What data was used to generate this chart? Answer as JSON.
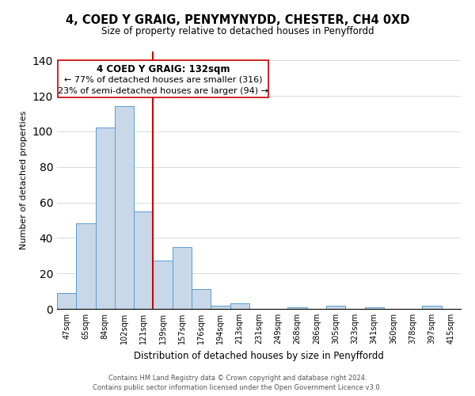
{
  "title": "4, COED Y GRAIG, PENYMYNYDD, CHESTER, CH4 0XD",
  "subtitle": "Size of property relative to detached houses in Penyffordd",
  "xlabel": "Distribution of detached houses by size in Penyffordd",
  "ylabel": "Number of detached properties",
  "footer_line1": "Contains HM Land Registry data © Crown copyright and database right 2024.",
  "footer_line2": "Contains public sector information licensed under the Open Government Licence v3.0.",
  "bar_labels": [
    "47sqm",
    "65sqm",
    "84sqm",
    "102sqm",
    "121sqm",
    "139sqm",
    "157sqm",
    "176sqm",
    "194sqm",
    "213sqm",
    "231sqm",
    "249sqm",
    "268sqm",
    "286sqm",
    "305sqm",
    "323sqm",
    "341sqm",
    "360sqm",
    "378sqm",
    "397sqm",
    "415sqm"
  ],
  "bar_values": [
    9,
    48,
    102,
    114,
    55,
    27,
    35,
    11,
    2,
    3,
    0,
    0,
    1,
    0,
    2,
    0,
    1,
    0,
    0,
    2,
    0
  ],
  "bar_color": "#c8d8e8",
  "bar_edge_color": "#5b9bd5",
  "vline_color": "#cc0000",
  "ylim": [
    0,
    145
  ],
  "yticks": [
    0,
    20,
    40,
    60,
    80,
    100,
    120,
    140
  ],
  "annotation_title": "4 COED Y GRAIG: 132sqm",
  "annotation_line1": "← 77% of detached houses are smaller (316)",
  "annotation_line2": "23% of semi-detached houses are larger (94) →"
}
